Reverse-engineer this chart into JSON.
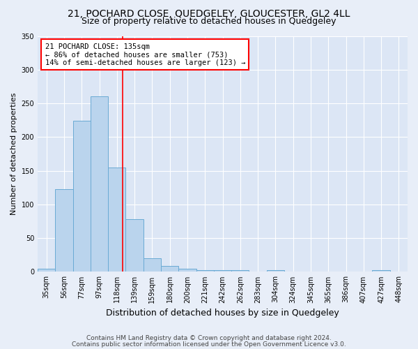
{
  "title1": "21, POCHARD CLOSE, QUEDGELEY, GLOUCESTER, GL2 4LL",
  "title2": "Size of property relative to detached houses in Quedgeley",
  "xlabel": "Distribution of detached houses by size in Quedgeley",
  "ylabel": "Number of detached properties",
  "footnote1": "Contains HM Land Registry data © Crown copyright and database right 2024.",
  "footnote2": "Contains public sector information licensed under the Open Government Licence v3.0.",
  "bin_labels": [
    "35sqm",
    "56sqm",
    "77sqm",
    "97sqm",
    "118sqm",
    "139sqm",
    "159sqm",
    "180sqm",
    "200sqm",
    "221sqm",
    "242sqm",
    "262sqm",
    "283sqm",
    "304sqm",
    "324sqm",
    "345sqm",
    "365sqm",
    "386sqm",
    "407sqm",
    "427sqm",
    "448sqm"
  ],
  "bar_values": [
    5,
    123,
    224,
    260,
    155,
    78,
    20,
    9,
    5,
    3,
    2,
    2,
    0,
    2,
    0,
    0,
    0,
    0,
    0,
    2,
    0
  ],
  "bar_color": "#bad4ed",
  "bar_edgecolor": "#6aaad4",
  "bin_edges_values": [
    35,
    56,
    77,
    97,
    118,
    139,
    159,
    180,
    200,
    221,
    242,
    262,
    283,
    304,
    324,
    345,
    365,
    386,
    407,
    427,
    448
  ],
  "property_sqm": 135,
  "annotation_line1": "21 POCHARD CLOSE: 135sqm",
  "annotation_line2": "← 86% of detached houses are smaller (753)",
  "annotation_line3": "14% of semi-detached houses are larger (123) →",
  "annotation_box_facecolor": "white",
  "annotation_box_edgecolor": "red",
  "vline_color": "red",
  "ylim": [
    0,
    350
  ],
  "yticks": [
    0,
    50,
    100,
    150,
    200,
    250,
    300,
    350
  ],
  "fig_facecolor": "#e8eef8",
  "ax_facecolor": "#dce6f5",
  "grid_color": "white",
  "title1_fontsize": 10,
  "title2_fontsize": 9,
  "xlabel_fontsize": 9,
  "ylabel_fontsize": 8,
  "tick_fontsize": 7,
  "annotation_fontsize": 7.5,
  "footnote_fontsize": 6.5
}
